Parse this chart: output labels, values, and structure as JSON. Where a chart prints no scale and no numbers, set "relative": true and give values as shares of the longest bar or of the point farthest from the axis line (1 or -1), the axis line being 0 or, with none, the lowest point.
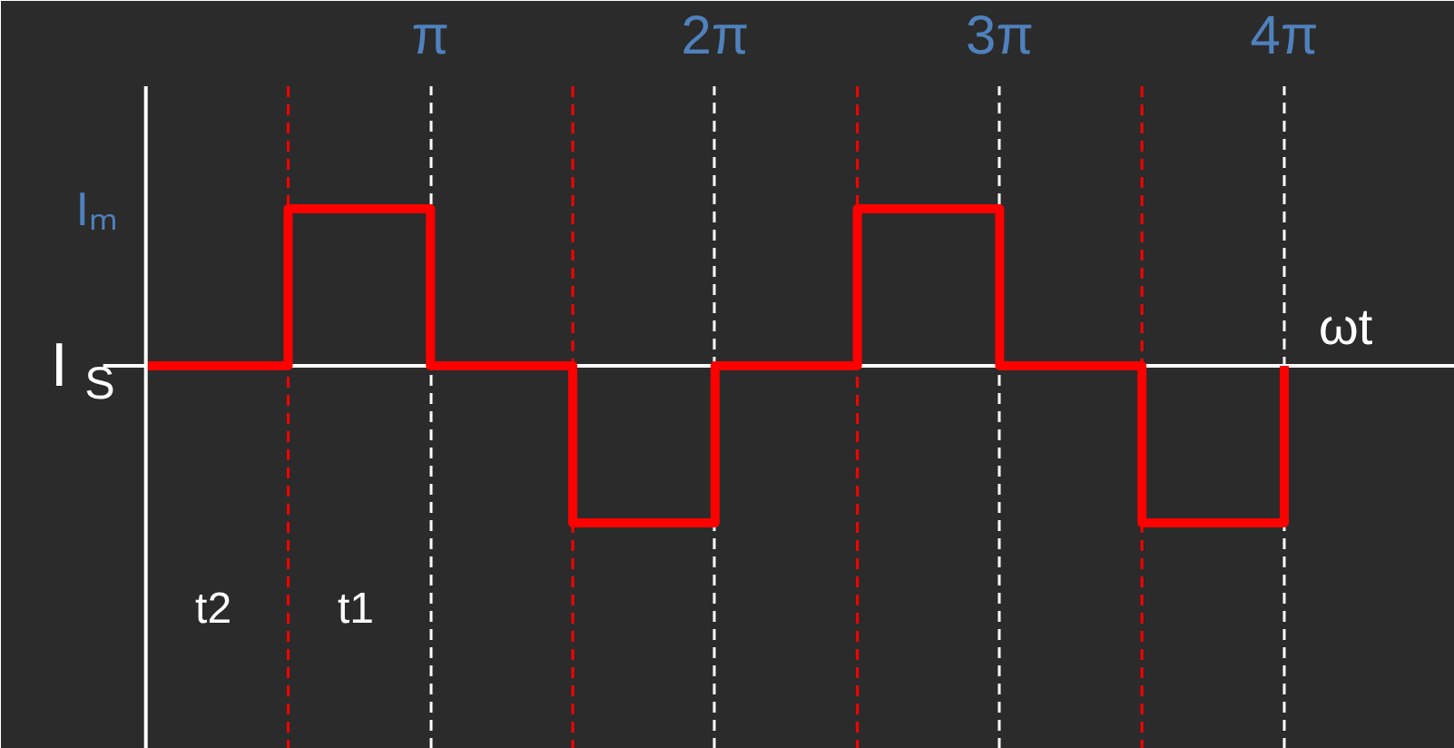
{
  "chart_data": {
    "type": "step",
    "xlabel": "ωt",
    "relative": true,
    "x": [
      0,
      1.5708,
      3.1416,
      4.7124,
      6.2832,
      7.854,
      9.4248,
      10.9956,
      12.5664
    ],
    "series": [
      {
        "color": "#ff0000",
        "values": [
          0,
          1,
          0,
          -1,
          0,
          1,
          0,
          -1,
          0
        ]
      }
    ],
    "xlim": [
      -1.6,
      14.45
    ],
    "xticks": [
      {
        "value": 3.1416,
        "label": "π"
      },
      {
        "value": 6.2832,
        "label": "2π"
      },
      {
        "value": 9.4248,
        "label": "3π"
      },
      {
        "value": 12.5664,
        "label": "4π"
      }
    ],
    "grid": "x",
    "line_style": "solid",
    "ref_lines": [
      {
        "axis": "x",
        "value": 1.5708,
        "color": "#ff0000",
        "line_style": "dashed"
      },
      {
        "axis": "x",
        "value": 4.7124,
        "color": "#ff0000",
        "line_style": "dashed"
      },
      {
        "axis": "x",
        "value": 7.854,
        "color": "#ff0000",
        "line_style": "dashed"
      },
      {
        "axis": "x",
        "value": 10.9956,
        "color": "#ff0000",
        "line_style": "dashed"
      }
    ],
    "annotations": [
      "Iₘ",
      "I$_{S}$",
      "t2",
      "t1"
    ]
  }
}
